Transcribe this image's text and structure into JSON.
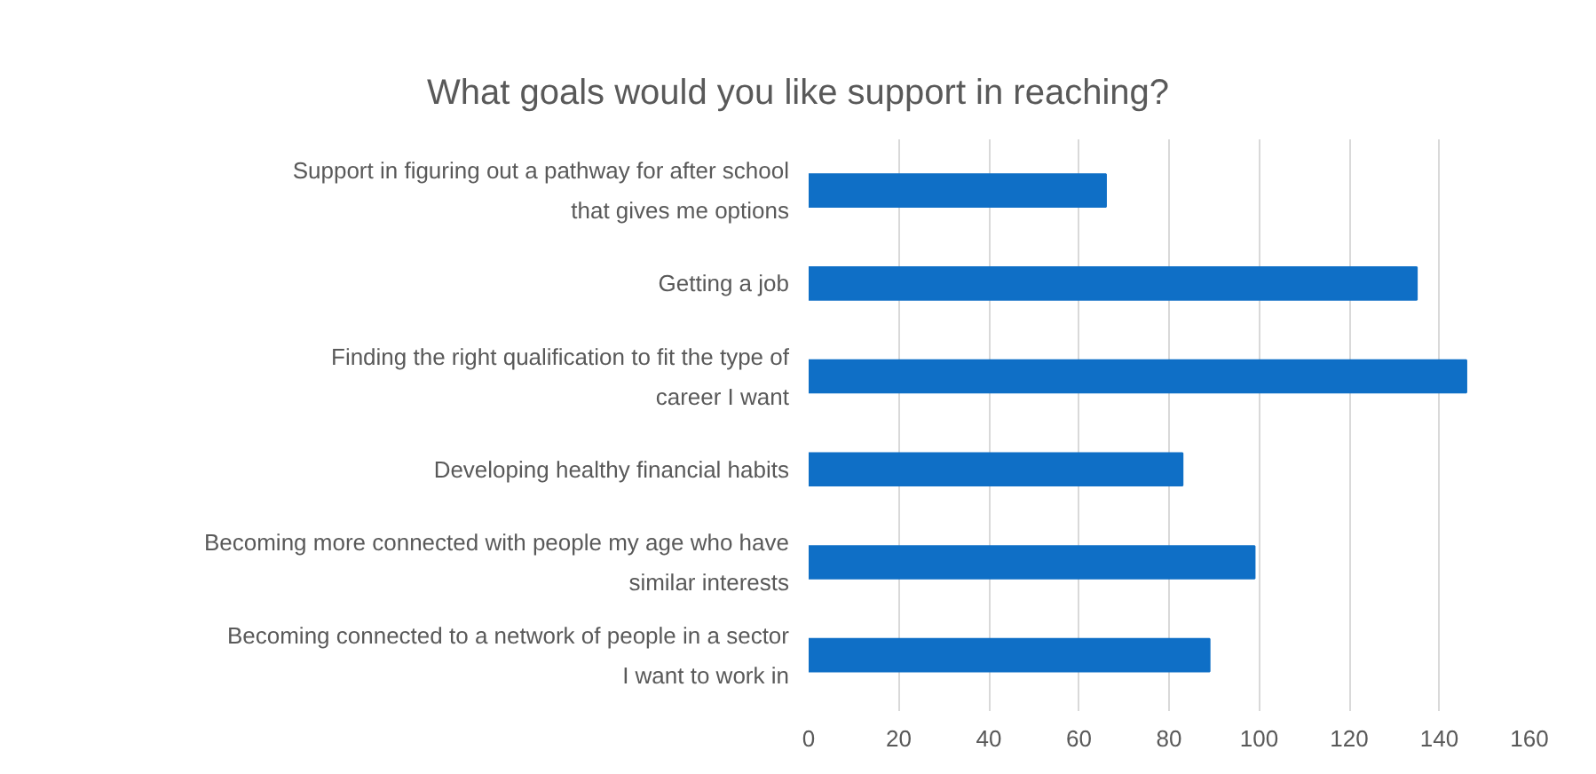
{
  "chart_data": {
    "type": "bar",
    "orientation": "horizontal",
    "title": "What goals would you like support in reaching?",
    "categories": [
      "Support in figuring out a pathway for after school that gives me options",
      "Getting a job",
      "Finding the right qualification to fit the type of career I want",
      "Developing healthy financial habits",
      "Becoming more connected with people my age who have similar interests",
      "Becoming connected to a network of people in a sector I want to work in"
    ],
    "values": [
      66,
      135,
      146,
      83,
      99,
      89
    ],
    "color": "#0f6fc6",
    "xlim": [
      0,
      160
    ],
    "xticks": [
      0,
      20,
      40,
      60,
      80,
      100,
      120,
      140,
      160
    ],
    "grid": "x"
  }
}
